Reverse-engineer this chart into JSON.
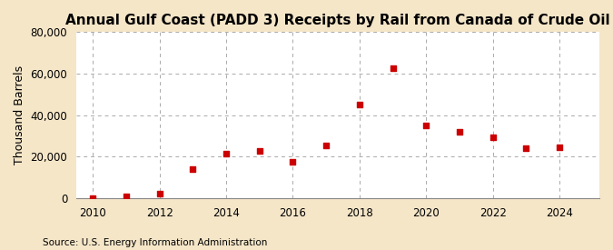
{
  "title": "Annual Gulf Coast (PADD 3) Receipts by Rail from Canada of Crude Oil",
  "ylabel": "Thousand Barrels",
  "source": "Source: U.S. Energy Information Administration",
  "outer_background_color": "#f5e6c8",
  "plot_background_color": "#ffffff",
  "grid_color": "#aaaaaa",
  "marker_color": "#cc0000",
  "years": [
    2010,
    2011,
    2012,
    2013,
    2014,
    2015,
    2016,
    2017,
    2018,
    2019,
    2020,
    2021,
    2022,
    2023,
    2024
  ],
  "values": [
    100,
    700,
    2200,
    14000,
    21500,
    23000,
    17500,
    25500,
    45000,
    62500,
    35000,
    32000,
    29500,
    24000,
    24500
  ],
  "ylim": [
    0,
    80000
  ],
  "yticks": [
    0,
    20000,
    40000,
    60000,
    80000
  ],
  "xlim": [
    2009.5,
    2025.2
  ],
  "xticks": [
    2010,
    2012,
    2014,
    2016,
    2018,
    2020,
    2022,
    2024
  ],
  "title_fontsize": 11,
  "label_fontsize": 9,
  "tick_fontsize": 8.5,
  "source_fontsize": 7.5
}
